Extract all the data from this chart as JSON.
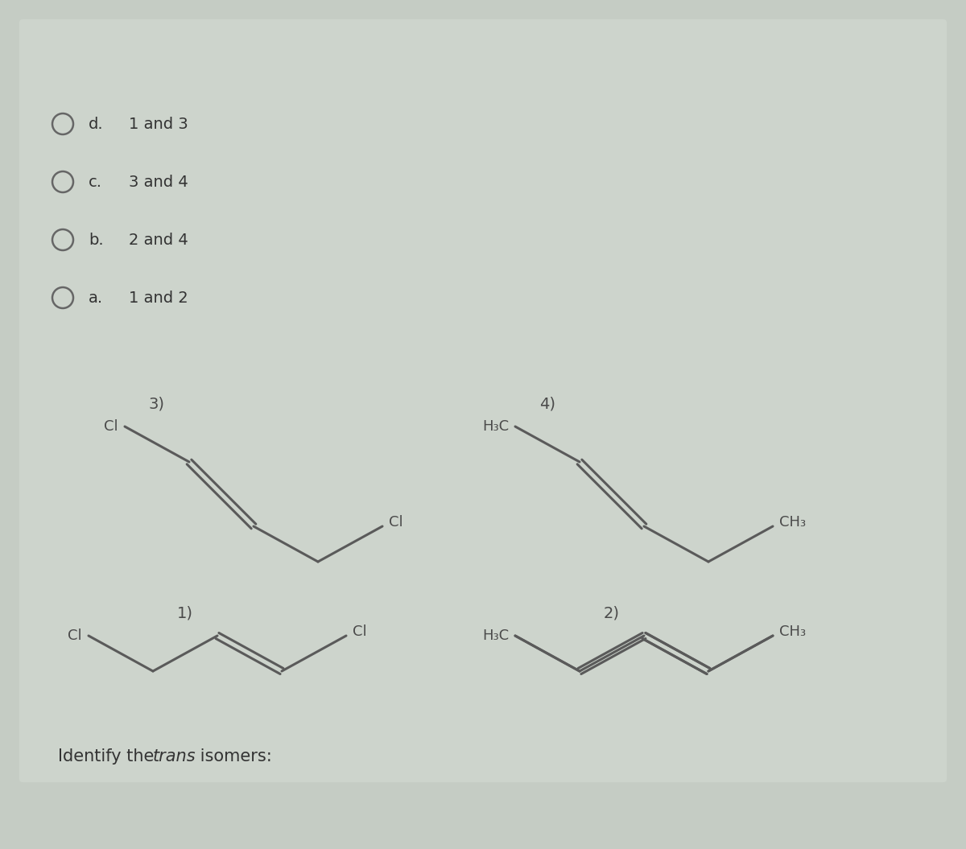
{
  "bg_color": "#c5ccc4",
  "card_color": "#cdd4cc",
  "molecule_color": "#5a5a5a",
  "label_color": "#4a4a4a",
  "title_pre": "Identify the ",
  "title_italic": "trans",
  "title_post": " isomers:",
  "title_fontsize": 15,
  "mol_fontsize": 13,
  "num_fontsize": 14,
  "choice_fontsize": 14,
  "choice_labels": [
    "a.",
    "b.",
    "c.",
    "d."
  ],
  "choice_texts": [
    "1 and 2",
    "2 and 4",
    "3 and 4",
    "1 and 3"
  ]
}
